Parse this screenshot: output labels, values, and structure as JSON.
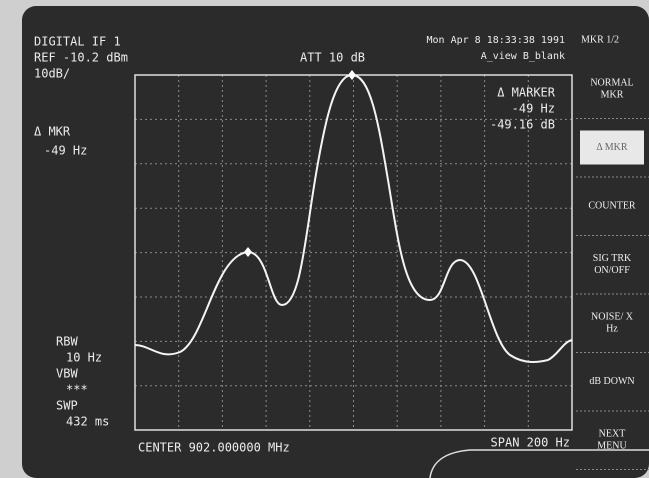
{
  "header": {
    "mode": "DIGITAL IF 1",
    "ref": "REF -10.2 dBm",
    "scale": "10dB/",
    "att": "ATT 10 dB",
    "datetime": "Mon Apr  8 18:33:38 1991",
    "view": "A_view B_blank"
  },
  "marker": {
    "title": "Δ MARKER",
    "freq": "-49 Hz",
    "level": "-49.16 dB"
  },
  "left_panel": {
    "mkr_title": "Δ MKR",
    "mkr_value": "-49 Hz",
    "rbw_label": "RBW",
    "rbw_value": "10 Hz",
    "vbw_label": "VBW",
    "vbw_value": "***",
    "swp_label": "SWP",
    "swp_value": "432 ms"
  },
  "footer": {
    "center": "CENTER 902.000000 MHz",
    "span": "SPAN 200 Hz"
  },
  "softkeys": {
    "title": "MKR 1/2",
    "keys": [
      "NORMAL MKR",
      "Δ MKR",
      "COUNTER",
      "SIG TRK ON/OFF",
      "NOISE/ X Hz",
      "dB DOWN",
      "NEXT MENU"
    ]
  }
}
